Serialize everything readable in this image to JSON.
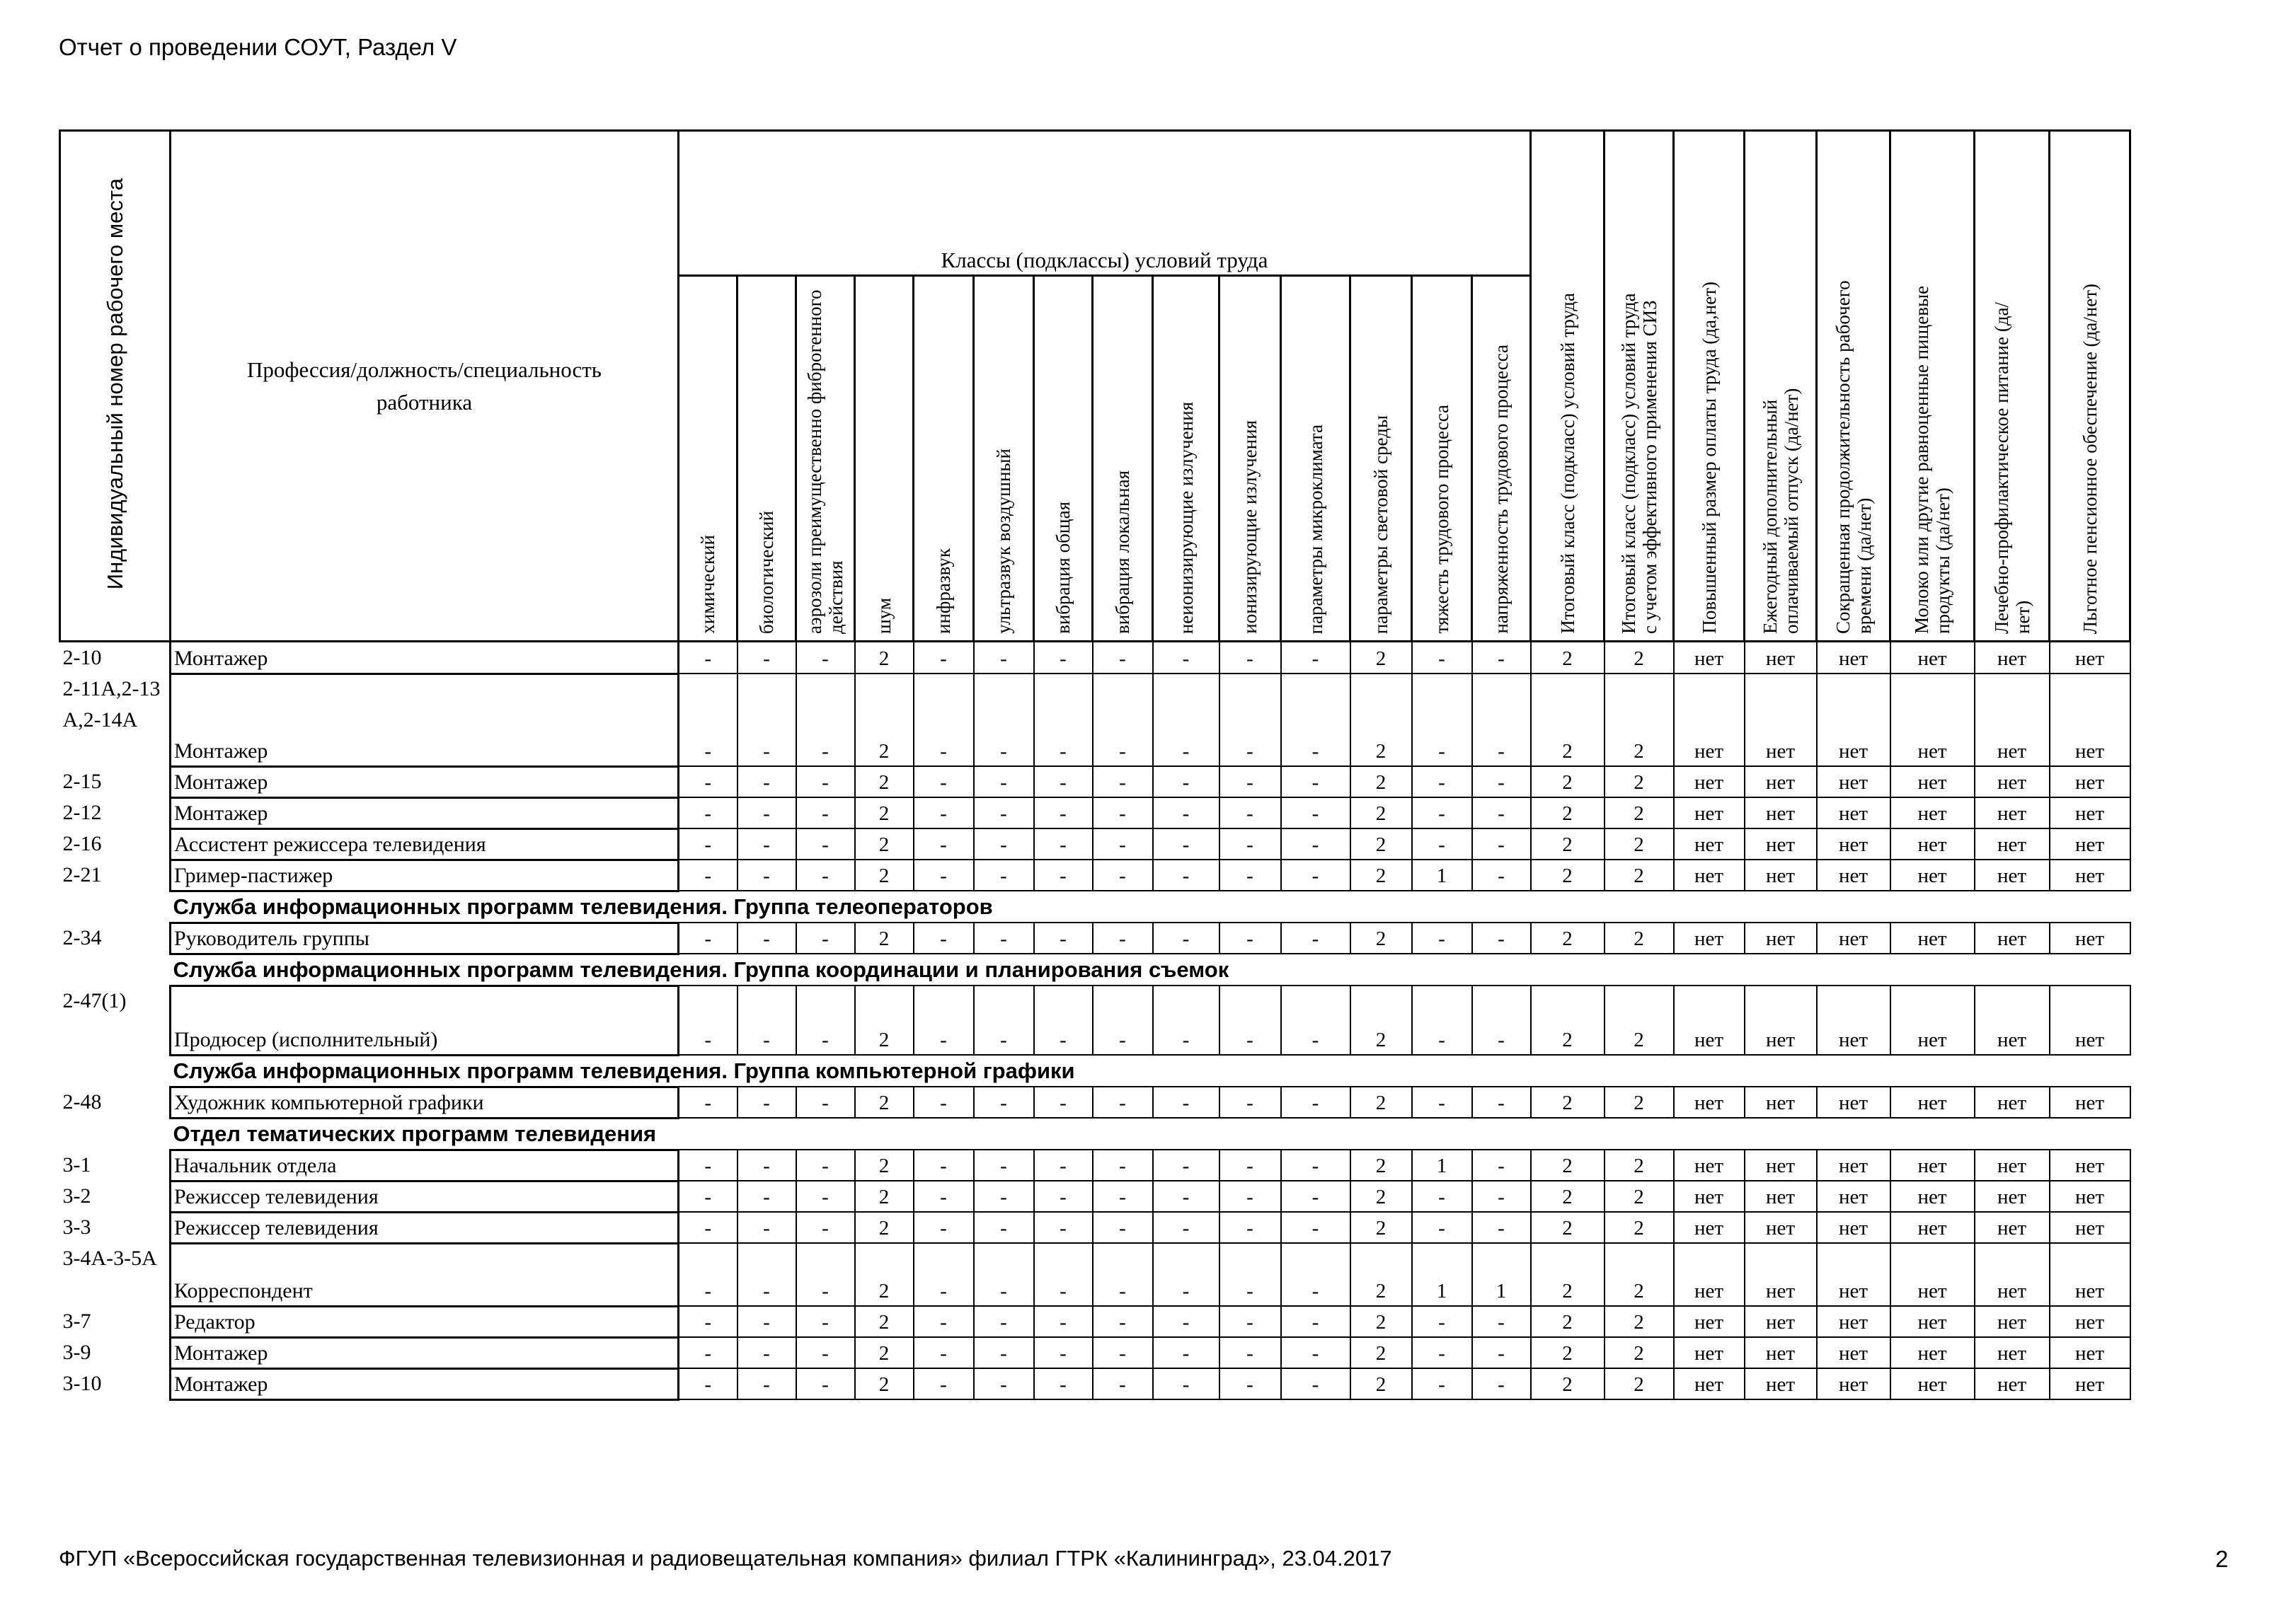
{
  "doc_title": "Отчет о проведении СОУТ, Раздел V",
  "header": {
    "id_col": "Индивидуальный номер рабочего места",
    "profession_col": "Профессия/должность/специальность работника",
    "classes_group": "Классы (подклассы) условий труда",
    "factors": [
      "химический",
      "биологический",
      "аэрозоли преимущественно фиброгенного действия",
      "шум",
      "инфразвук",
      "ультразвук воздушный",
      "вибрация общая",
      "вибрация локальная",
      "неионизирующие излучения",
      "ионизирующие излучения",
      "параметры микроклимата",
      "параметры световой среды",
      "тяжесть трудового процесса",
      "напряженность трудового процесса"
    ],
    "final_cols": [
      "Итоговый класс (подкласс) условий труда",
      "Итоговый класс (подкласс) условий труда с учетом эффективного применения СИЗ",
      "Повышенный размер оплаты труда (да,нет)",
      "Ежегодный дополнительный оплачиваемый отпуск (да/нет)",
      "Сокращенная продолжительность рабочего времени (да/нет)",
      "Молоко или другие равноценные пищевые продукты (да/нет)",
      "Лечебно-профилактическое питание  (да/нет)",
      "Льготное пенсионное обеспечение (да/нет)"
    ]
  },
  "rows": [
    {
      "id": "2-10",
      "profession": "Монтажер",
      "factors": [
        "-",
        "-",
        "-",
        "2",
        "-",
        "-",
        "-",
        "-",
        "-",
        "-",
        "-",
        "2",
        "-",
        "-"
      ],
      "final": [
        "2",
        "2",
        "нет",
        "нет",
        "нет",
        "нет",
        "нет",
        "нет"
      ]
    },
    {
      "id": "2-11А,2-13А,2-14А",
      "profession": "Монтажер",
      "factors": [
        "-",
        "-",
        "-",
        "2",
        "-",
        "-",
        "-",
        "-",
        "-",
        "-",
        "-",
        "2",
        "-",
        "-"
      ],
      "final": [
        "2",
        "2",
        "нет",
        "нет",
        "нет",
        "нет",
        "нет",
        "нет"
      ]
    },
    {
      "id": "2-15",
      "profession": "Монтажер",
      "factors": [
        "-",
        "-",
        "-",
        "2",
        "-",
        "-",
        "-",
        "-",
        "-",
        "-",
        "-",
        "2",
        "-",
        "-"
      ],
      "final": [
        "2",
        "2",
        "нет",
        "нет",
        "нет",
        "нет",
        "нет",
        "нет"
      ]
    },
    {
      "id": "2-12",
      "profession": "Монтажер",
      "factors": [
        "-",
        "-",
        "-",
        "2",
        "-",
        "-",
        "-",
        "-",
        "-",
        "-",
        "-",
        "2",
        "-",
        "-"
      ],
      "final": [
        "2",
        "2",
        "нет",
        "нет",
        "нет",
        "нет",
        "нет",
        "нет"
      ]
    },
    {
      "id": "2-16",
      "profession": "Ассистент режиссера телевидения",
      "factors": [
        "-",
        "-",
        "-",
        "2",
        "-",
        "-",
        "-",
        "-",
        "-",
        "-",
        "-",
        "2",
        "-",
        "-"
      ],
      "final": [
        "2",
        "2",
        "нет",
        "нет",
        "нет",
        "нет",
        "нет",
        "нет"
      ]
    },
    {
      "id": "2-21",
      "profession": "Гример-пастижер",
      "factors": [
        "-",
        "-",
        "-",
        "2",
        "-",
        "-",
        "-",
        "-",
        "-",
        "-",
        "-",
        "2",
        "1",
        "-"
      ],
      "final": [
        "2",
        "2",
        "нет",
        "нет",
        "нет",
        "нет",
        "нет",
        "нет"
      ]
    },
    {
      "section": "Служба информационных программ телевидения. Группа телеоператоров"
    },
    {
      "id": "2-34",
      "profession": "Руководитель группы",
      "factors": [
        "-",
        "-",
        "-",
        "2",
        "-",
        "-",
        "-",
        "-",
        "-",
        "-",
        "-",
        "2",
        "-",
        "-"
      ],
      "final": [
        "2",
        "2",
        "нет",
        "нет",
        "нет",
        "нет",
        "нет",
        "нет"
      ]
    },
    {
      "section": "Служба информационных программ телевидения. Группа координации и планирования съемок"
    },
    {
      "id": "2-47(1)",
      "profession": "Продюсер (исполнительный)",
      "factors": [
        "-",
        "-",
        "-",
        "2",
        "-",
        "-",
        "-",
        "-",
        "-",
        "-",
        "-",
        "2",
        "-",
        "-"
      ],
      "final": [
        "2",
        "2",
        "нет",
        "нет",
        "нет",
        "нет",
        "нет",
        "нет"
      ]
    },
    {
      "section": "Служба информационных программ телевидения. Группа компьютерной графики"
    },
    {
      "id": "2-48",
      "profession": "Художник компьютерной графики",
      "factors": [
        "-",
        "-",
        "-",
        "2",
        "-",
        "-",
        "-",
        "-",
        "-",
        "-",
        "-",
        "2",
        "-",
        "-"
      ],
      "final": [
        "2",
        "2",
        "нет",
        "нет",
        "нет",
        "нет",
        "нет",
        "нет"
      ]
    },
    {
      "section": "Отдел тематических программ телевидения"
    },
    {
      "id": "3-1",
      "profession": "Начальник отдела",
      "factors": [
        "-",
        "-",
        "-",
        "2",
        "-",
        "-",
        "-",
        "-",
        "-",
        "-",
        "-",
        "2",
        "1",
        "-"
      ],
      "final": [
        "2",
        "2",
        "нет",
        "нет",
        "нет",
        "нет",
        "нет",
        "нет"
      ]
    },
    {
      "id": "3-2",
      "profession": "Режиссер телевидения",
      "factors": [
        "-",
        "-",
        "-",
        "2",
        "-",
        "-",
        "-",
        "-",
        "-",
        "-",
        "-",
        "2",
        "-",
        "-"
      ],
      "final": [
        "2",
        "2",
        "нет",
        "нет",
        "нет",
        "нет",
        "нет",
        "нет"
      ]
    },
    {
      "id": "3-3",
      "profession": "Режиссер телевидения",
      "factors": [
        "-",
        "-",
        "-",
        "2",
        "-",
        "-",
        "-",
        "-",
        "-",
        "-",
        "-",
        "2",
        "-",
        "-"
      ],
      "final": [
        "2",
        "2",
        "нет",
        "нет",
        "нет",
        "нет",
        "нет",
        "нет"
      ]
    },
    {
      "id": "3-4А-3-5А",
      "profession": "Корреспондент",
      "factors": [
        "-",
        "-",
        "-",
        "2",
        "-",
        "-",
        "-",
        "-",
        "-",
        "-",
        "-",
        "2",
        "1",
        "1"
      ],
      "final": [
        "2",
        "2",
        "нет",
        "нет",
        "нет",
        "нет",
        "нет",
        "нет"
      ]
    },
    {
      "id": "3-7",
      "profession": "Редактор",
      "factors": [
        "-",
        "-",
        "-",
        "2",
        "-",
        "-",
        "-",
        "-",
        "-",
        "-",
        "-",
        "2",
        "-",
        "-"
      ],
      "final": [
        "2",
        "2",
        "нет",
        "нет",
        "нет",
        "нет",
        "нет",
        "нет"
      ]
    },
    {
      "id": "3-9",
      "profession": "Монтажер",
      "factors": [
        "-",
        "-",
        "-",
        "2",
        "-",
        "-",
        "-",
        "-",
        "-",
        "-",
        "-",
        "2",
        "-",
        "-"
      ],
      "final": [
        "2",
        "2",
        "нет",
        "нет",
        "нет",
        "нет",
        "нет",
        "нет"
      ]
    },
    {
      "id": "3-10",
      "profession": "Монтажер",
      "factors": [
        "-",
        "-",
        "-",
        "2",
        "-",
        "-",
        "-",
        "-",
        "-",
        "-",
        "-",
        "2",
        "-",
        "-"
      ],
      "final": [
        "2",
        "2",
        "нет",
        "нет",
        "нет",
        "нет",
        "нет",
        "нет"
      ]
    }
  ],
  "footer": "ФГУП «Всероссийская государственная телевизионная и радиовещательная компания» филиал ГТРК «Калининград», 23.04.2017",
  "page_number": "2"
}
